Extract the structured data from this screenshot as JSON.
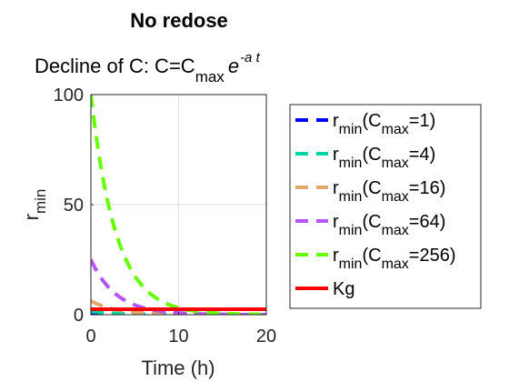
{
  "chart_data": {
    "type": "line",
    "title": "No redose",
    "subtitle": {
      "prefix": "Decline of C: C=C",
      "sub": "max",
      "exp_base": "e",
      "exp_power": "-a t"
    },
    "xlabel": "Time (h)",
    "ylabel": {
      "base": "r",
      "sub": "min"
    },
    "xlim": [
      0,
      20
    ],
    "ylim": [
      0,
      100
    ],
    "xticks": [
      "0",
      "10",
      "20"
    ],
    "yticks": [
      "0",
      "50",
      "100"
    ],
    "grid": true,
    "legend_position": "right",
    "decay_rate": 0.3466,
    "series": [
      {
        "name": "r",
        "name_sub": "min",
        "paren_open": "(C",
        "paren_sub": "max",
        "paren_close": "=1)",
        "initial": 1,
        "style": "dashed",
        "color": "#0000ff"
      },
      {
        "name": "r",
        "name_sub": "min",
        "paren_open": "(C",
        "paren_sub": "max",
        "paren_close": "=4)",
        "initial": 4,
        "style": "dashed",
        "color": "#00d4a0"
      },
      {
        "name": "r",
        "name_sub": "min",
        "paren_open": "(C",
        "paren_sub": "max",
        "paren_close": "=16)",
        "initial": 16,
        "style": "dashed",
        "color": "#e0a86a"
      },
      {
        "name": "r",
        "name_sub": "min",
        "paren_open": "(C",
        "paren_sub": "max",
        "paren_close": "=64)",
        "initial": 64,
        "style": "dashed",
        "color": "#b455ff"
      },
      {
        "name": "r",
        "name_sub": "min",
        "paren_open": "(C",
        "paren_sub": "max",
        "paren_close": "=256)",
        "initial": 256,
        "style": "dashed",
        "color": "#66ff00"
      },
      {
        "name": "Kg",
        "name_sub": "",
        "paren_open": "",
        "paren_sub": "",
        "paren_close": "",
        "constant": 2.5,
        "style": "solid",
        "color": "#ff0000"
      }
    ]
  }
}
